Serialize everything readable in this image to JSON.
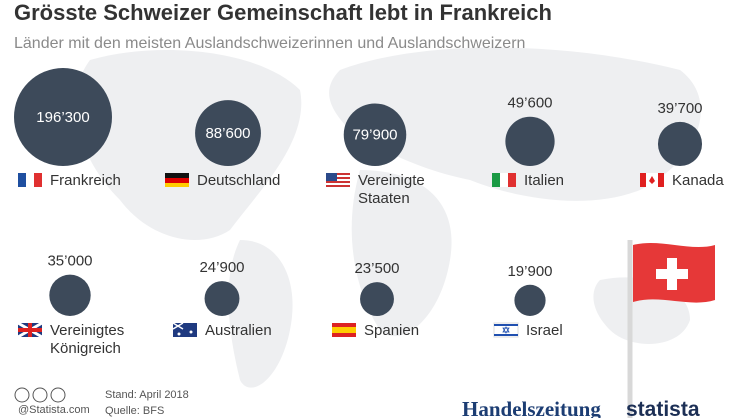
{
  "chart_data": {
    "type": "bubble",
    "title": "Grösste Schweizer Gemeinschaft lebt in Frankreich",
    "subtitle": "Länder mit den meisten Auslandschweizerinnen und Auslandschweizern",
    "categories": [
      "Frankreich",
      "Deutschland",
      "Vereinigte Staaten",
      "Italien",
      "Kanada",
      "Vereinigtes Königreich",
      "Australien",
      "Spanien",
      "Israel"
    ],
    "values": [
      196300,
      88600,
      79900,
      49600,
      39700,
      35000,
      24900,
      23500,
      19900
    ],
    "value_labels": [
      "196’300",
      "88’600",
      "79’900",
      "49’600",
      "39’700",
      "35’000",
      "24’900",
      "23’500",
      "19’900"
    ],
    "color": "#3d4a5a",
    "note": "Stand: April 2018",
    "source": "Quelle: BFS",
    "credit": "@Statista.com",
    "brands": [
      "Handelszeitung",
      "statista"
    ]
  }
}
